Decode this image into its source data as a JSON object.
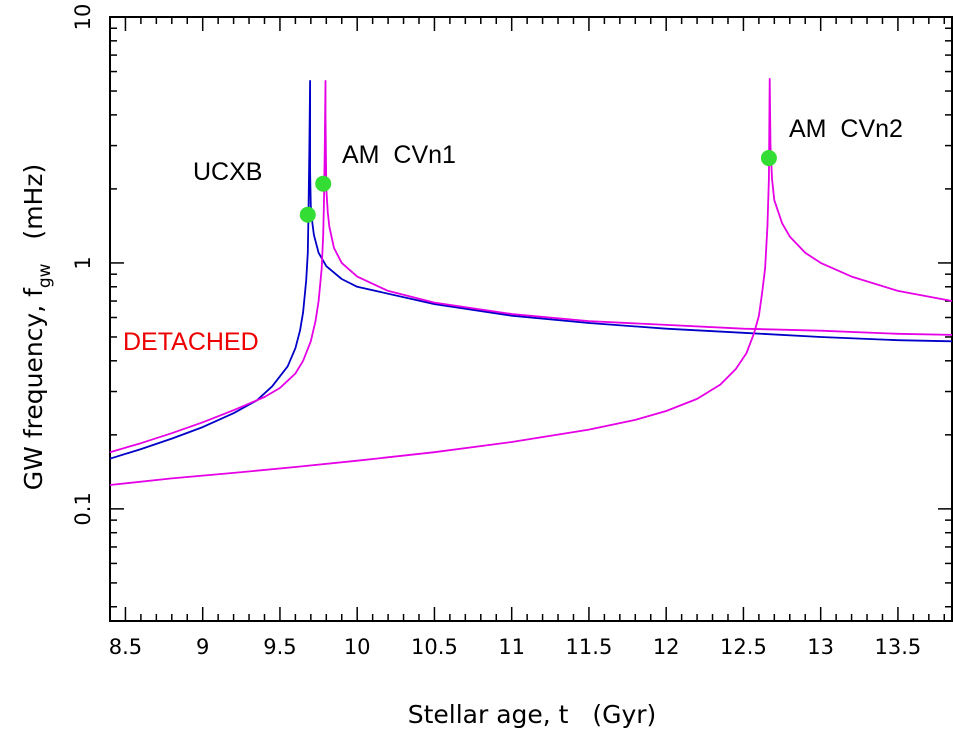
{
  "chart_data": {
    "type": "line",
    "title": "",
    "xlabel": "Stellar age, t   (Gyr)",
    "ylabel": "GW frequency, f",
    "ylabel_subscript": "gw",
    "ylabel_unit": "(mHz)",
    "xlim": [
      8.4,
      13.85
    ],
    "ylim": [
      0.035,
      10
    ],
    "yscale": "log",
    "grid": false,
    "x_ticks": [
      8.5,
      9,
      9.5,
      10,
      10.5,
      11,
      11.5,
      12,
      12.5,
      13,
      13.5
    ],
    "x_tick_labels": [
      "8.5",
      "9",
      "9.5",
      "10",
      "10.5",
      "11",
      "11.5",
      "12",
      "12.5",
      "13",
      "13.5"
    ],
    "y_ticks": [
      0.1,
      1,
      10
    ],
    "y_tick_labels": [
      "0.1",
      "1",
      "10"
    ],
    "series": [
      {
        "color": "#0000c8",
        "x": [
          8.4,
          8.6,
          8.8,
          9.0,
          9.2,
          9.35,
          9.45,
          9.55,
          9.6,
          9.63,
          9.65,
          9.67,
          9.68,
          9.685,
          9.69,
          9.695,
          9.695,
          9.7,
          9.71,
          9.72,
          9.75,
          9.8,
          9.9,
          10.0,
          10.5,
          11.0,
          11.5,
          12.0,
          12.5,
          13.0,
          13.5,
          13.85
        ],
        "y": [
          0.16,
          0.175,
          0.193,
          0.215,
          0.245,
          0.276,
          0.315,
          0.38,
          0.45,
          0.53,
          0.63,
          0.85,
          1.1,
          1.6,
          2.8,
          5.5,
          2.35,
          1.7,
          1.45,
          1.3,
          1.1,
          0.97,
          0.86,
          0.8,
          0.68,
          0.61,
          0.57,
          0.54,
          0.52,
          0.5,
          0.485,
          0.48
        ]
      },
      {
        "color": "#e600e6",
        "x": [
          8.4,
          8.6,
          8.8,
          9.0,
          9.2,
          9.4,
          9.5,
          9.6,
          9.65,
          9.7,
          9.73,
          9.75,
          9.77,
          9.78,
          9.785,
          9.79,
          9.795,
          9.795,
          9.8,
          9.81,
          9.82,
          9.85,
          9.9,
          10.0,
          10.2,
          10.5,
          11.0,
          11.5,
          12.0,
          12.5,
          13.0,
          13.5,
          13.85
        ],
        "y": [
          0.17,
          0.185,
          0.203,
          0.225,
          0.252,
          0.285,
          0.31,
          0.355,
          0.4,
          0.48,
          0.58,
          0.7,
          0.95,
          1.3,
          1.8,
          2.8,
          5.5,
          4.0,
          2.0,
          1.6,
          1.4,
          1.15,
          1.0,
          0.88,
          0.77,
          0.69,
          0.62,
          0.58,
          0.56,
          0.54,
          0.53,
          0.515,
          0.51
        ]
      },
      {
        "color": "#e600e6",
        "x": [
          8.4,
          8.8,
          9.2,
          9.6,
          10.0,
          10.5,
          11.0,
          11.5,
          11.8,
          12.0,
          12.2,
          12.35,
          12.45,
          12.52,
          12.57,
          12.6,
          12.62,
          12.64,
          12.655,
          12.665,
          12.67,
          12.67,
          12.675,
          12.685,
          12.7,
          12.75,
          12.8,
          12.9,
          13.0,
          13.2,
          13.5,
          13.85
        ],
        "y": [
          0.125,
          0.133,
          0.14,
          0.148,
          0.157,
          0.17,
          0.187,
          0.21,
          0.23,
          0.25,
          0.28,
          0.32,
          0.37,
          0.43,
          0.52,
          0.61,
          0.75,
          0.95,
          1.4,
          2.2,
          5.6,
          5.6,
          3.0,
          2.2,
          1.8,
          1.45,
          1.28,
          1.1,
          1.0,
          0.88,
          0.77,
          0.7
        ]
      }
    ],
    "points": [
      {
        "label": "UCXB",
        "x": 9.68,
        "y": 1.57,
        "color": "#33dd33"
      },
      {
        "label": "AM CVn1",
        "x": 9.78,
        "y": 2.1,
        "color": "#33dd33"
      },
      {
        "label": "AM CVn2",
        "x": 12.665,
        "y": 2.67,
        "color": "#33dd33"
      }
    ],
    "annotations": [
      {
        "text": "UCXB",
        "color": "#000000"
      },
      {
        "text": "AM  CVn1",
        "color": "#000000"
      },
      {
        "text": "AM  CVn2",
        "color": "#000000"
      },
      {
        "text": "DETACHED",
        "color": "#ee0000"
      }
    ]
  }
}
